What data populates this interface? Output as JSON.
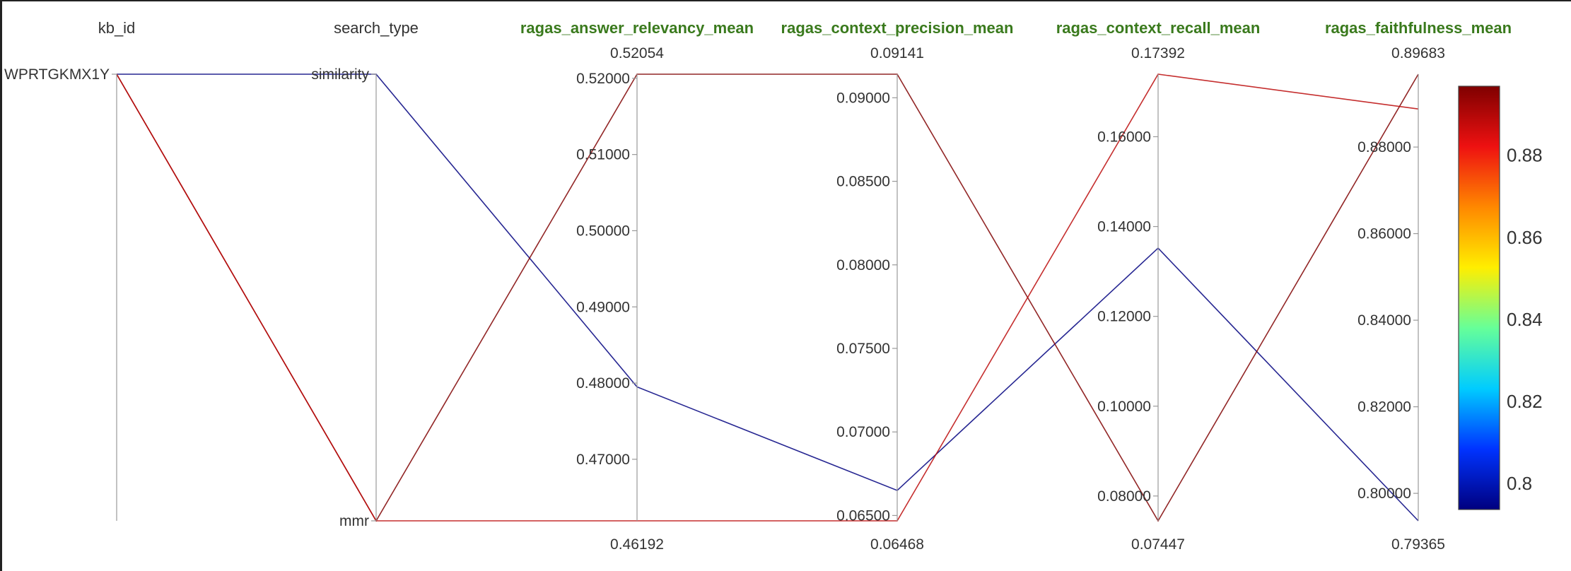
{
  "chart_data": {
    "type": "parallel_coordinates",
    "dimensions": [
      {
        "key": "kb_id",
        "label": "kb_id",
        "highlight": false,
        "categorical": true,
        "categories": [
          "WPRTGKMX1Y"
        ],
        "tick_labels": [
          "WPRTGKMX1Y"
        ],
        "tick_values": [
          1
        ],
        "range": [
          0,
          1
        ],
        "range_labels": [
          "",
          ""
        ]
      },
      {
        "key": "search_type",
        "label": "search_type",
        "highlight": false,
        "categorical": true,
        "categories": [
          "mmr",
          "similarity"
        ],
        "tick_labels": [
          "mmr",
          "similarity"
        ],
        "tick_values": [
          0,
          1
        ],
        "range": [
          0,
          1
        ],
        "range_labels": [
          "",
          ""
        ]
      },
      {
        "key": "ragas_answer_relevancy_mean",
        "label": "ragas_answer_relevancy_mean",
        "highlight": true,
        "categorical": false,
        "range": [
          0.46192,
          0.52054
        ],
        "range_labels": [
          "0.46192",
          "0.52054"
        ],
        "tick_values": [
          0.47,
          0.48,
          0.49,
          0.5,
          0.51,
          0.52
        ],
        "tick_labels": [
          "0.47000",
          "0.48000",
          "0.49000",
          "0.50000",
          "0.51000",
          "0.52000"
        ]
      },
      {
        "key": "ragas_context_precision_mean",
        "label": "ragas_context_precision_mean",
        "highlight": true,
        "categorical": false,
        "range": [
          0.06468,
          0.09141
        ],
        "range_labels": [
          "0.06468",
          "0.09141"
        ],
        "tick_values": [
          0.065,
          0.07,
          0.075,
          0.08,
          0.085,
          0.09
        ],
        "tick_labels": [
          "0.06500",
          "0.07000",
          "0.07500",
          "0.08000",
          "0.08500",
          "0.09000"
        ]
      },
      {
        "key": "ragas_context_recall_mean",
        "label": "ragas_context_recall_mean",
        "highlight": true,
        "categorical": false,
        "range": [
          0.07447,
          0.17392
        ],
        "range_labels": [
          "0.07447",
          "0.17392"
        ],
        "tick_values": [
          0.08,
          0.1,
          0.12,
          0.14,
          0.16
        ],
        "tick_labels": [
          "0.08000",
          "0.10000",
          "0.12000",
          "0.14000",
          "0.16000"
        ]
      },
      {
        "key": "ragas_faithfulness_mean",
        "label": "ragas_faithfulness_mean",
        "highlight": true,
        "categorical": false,
        "range": [
          0.79365,
          0.89683
        ],
        "range_labels": [
          "0.79365",
          "0.89683"
        ],
        "tick_values": [
          0.8,
          0.82,
          0.84,
          0.86,
          0.88
        ],
        "tick_labels": [
          "0.80000",
          "0.82000",
          "0.84000",
          "0.86000",
          "0.88000"
        ]
      }
    ],
    "lines": [
      {
        "kb_id": "WPRTGKMX1Y",
        "search_type": "similarity",
        "ragas_answer_relevancy_mean": 0.4795,
        "ragas_context_precision_mean": 0.0665,
        "ragas_context_recall_mean": 0.1352,
        "ragas_faithfulness_mean": 0.79365
      },
      {
        "kb_id": "WPRTGKMX1Y",
        "search_type": "mmr",
        "ragas_answer_relevancy_mean": 0.52054,
        "ragas_context_precision_mean": 0.09141,
        "ragas_context_recall_mean": 0.07447,
        "ragas_faithfulness_mean": 0.89683
      },
      {
        "kb_id": "WPRTGKMX1Y",
        "search_type": "mmr",
        "ragas_answer_relevancy_mean": 0.46192,
        "ragas_context_precision_mean": 0.06468,
        "ragas_context_recall_mean": 0.17392,
        "ragas_faithfulness_mean": 0.8888
      }
    ],
    "color_by": "ragas_faithfulness_mean",
    "colorscale": [
      "#00007f",
      "#0033ff",
      "#00ccff",
      "#66ff99",
      "#ffee00",
      "#ff8800",
      "#ee1111",
      "#7f0000"
    ],
    "colorbar": {
      "range": [
        0.79365,
        0.89683
      ],
      "tick_values": [
        0.8,
        0.82,
        0.84,
        0.86,
        0.88
      ],
      "tick_labels": [
        "0.8",
        "0.82",
        "0.84",
        "0.86",
        "0.88"
      ]
    }
  }
}
